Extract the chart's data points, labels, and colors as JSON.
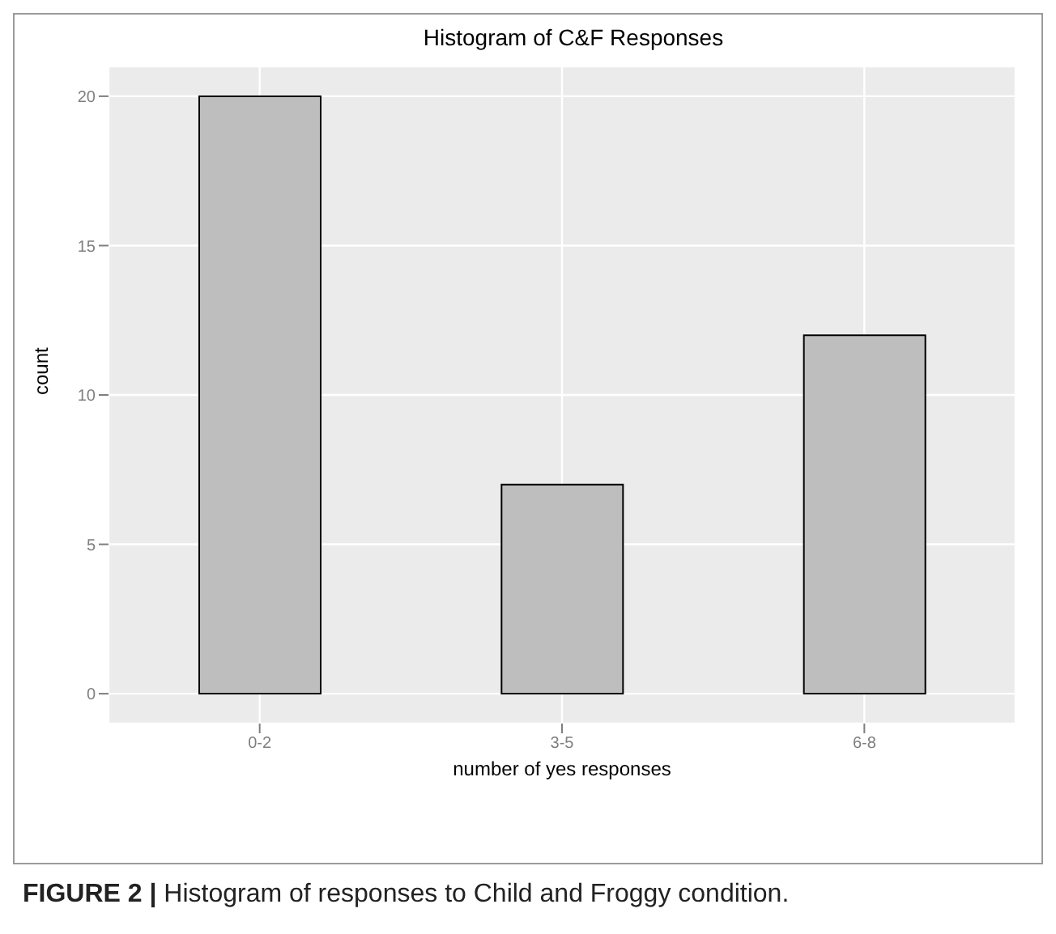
{
  "chart_data": {
    "type": "bar",
    "title": "Histogram of C&F Responses",
    "xlabel": "number of yes responses",
    "ylabel": "count",
    "categories": [
      "0-2",
      "3-5",
      "6-8"
    ],
    "values": [
      20,
      7,
      12
    ],
    "color": "#bebebe",
    "ylim": [
      -1,
      21
    ],
    "yticks": [
      0,
      5,
      10,
      15,
      20
    ],
    "grid": true,
    "annotations": [
      "FIGURE 2 | Histogram of responses to Child and Froggy condition."
    ]
  }
}
